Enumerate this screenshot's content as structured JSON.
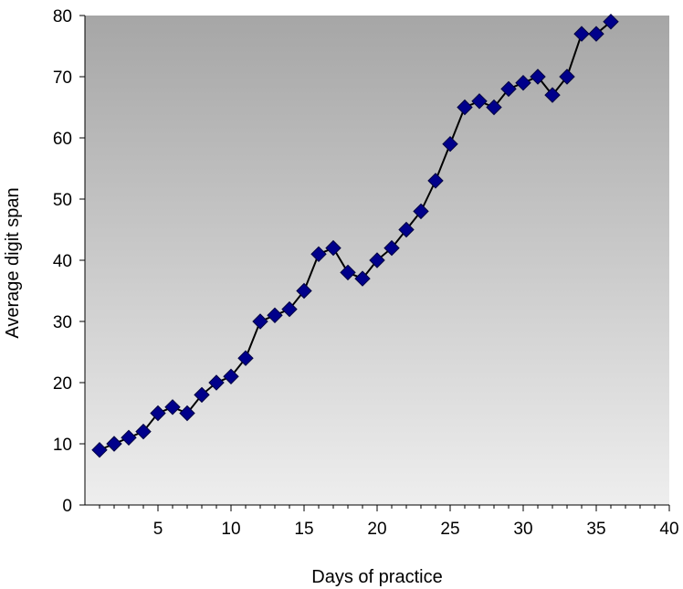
{
  "chart_data": {
    "type": "line",
    "title": "",
    "xlabel": "Days of practice",
    "ylabel": "Average digit span",
    "xlim": [
      0,
      40
    ],
    "ylim": [
      0,
      80
    ],
    "x_ticks": [
      5,
      10,
      15,
      20,
      25,
      30,
      35,
      40
    ],
    "y_ticks": [
      0,
      10,
      20,
      30,
      40,
      50,
      60,
      70,
      80
    ],
    "grid": false,
    "legend": "none",
    "series": [
      {
        "marker": "diamond",
        "marker_color": "#00008b",
        "line_color": "#000000",
        "x": [
          1,
          2,
          3,
          4,
          5,
          6,
          7,
          8,
          9,
          10,
          11,
          12,
          13,
          14,
          15,
          16,
          17,
          18,
          19,
          20,
          21,
          22,
          23,
          24,
          25,
          26,
          27,
          28,
          29,
          30,
          31,
          32,
          33,
          34,
          35,
          36
        ],
        "y": [
          9,
          10,
          11,
          12,
          15,
          16,
          15,
          18,
          20,
          21,
          24,
          30,
          31,
          32,
          35,
          41,
          42,
          38,
          37,
          40,
          42,
          45,
          48,
          53,
          59,
          65,
          66,
          65,
          68,
          69,
          70,
          67,
          70,
          77,
          77,
          79
        ]
      }
    ],
    "plot_background": {
      "top": "#a6a6a6",
      "bottom": "#eeeeee"
    }
  }
}
